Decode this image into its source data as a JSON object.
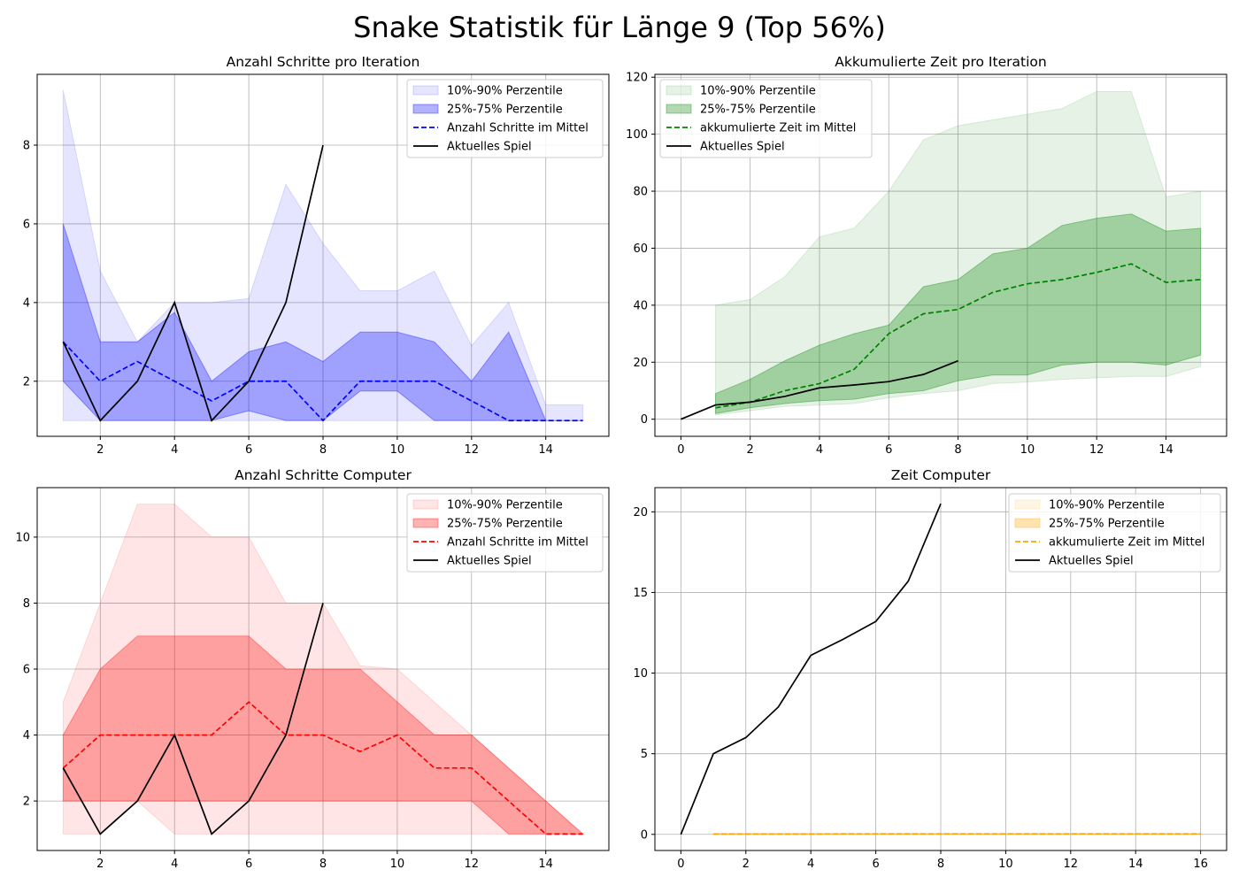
{
  "title": "Snake Statistik für Länge 9 (Top 56%)",
  "chart_data": [
    {
      "type": "line",
      "title": "Anzahl Schritte pro Iteration",
      "color": "#0000ff",
      "xlim": [
        0.3,
        15.7
      ],
      "ylim": [
        0.6,
        9.8
      ],
      "xticks": [
        2,
        4,
        6,
        8,
        10,
        12,
        14
      ],
      "yticks": [
        2,
        4,
        6,
        8
      ],
      "grid": true,
      "legend": "top-right",
      "legend_labels": {
        "band_outer": "10%-90% Perzentile",
        "band_inner": "25%-75% Perzentile",
        "mean": "Anzahl Schritte im Mittel",
        "current": "Aktuelles Spiel"
      },
      "x": [
        1,
        2,
        3,
        4,
        5,
        6,
        7,
        8,
        9,
        10,
        11,
        12,
        13,
        14,
        15
      ],
      "p10": [
        1,
        1,
        1,
        1,
        1,
        1,
        1,
        1,
        1,
        1,
        1,
        1,
        1,
        1,
        1
      ],
      "p90": [
        9.4,
        4.8,
        3.0,
        4.0,
        4.0,
        4.1,
        7.0,
        5.5,
        4.3,
        4.3,
        4.8,
        2.9,
        4.0,
        1.4,
        1.4
      ],
      "p25": [
        2,
        1,
        1,
        1,
        1,
        1.25,
        1,
        1,
        1.75,
        1.75,
        1,
        1,
        1,
        1,
        1
      ],
      "p75": [
        6,
        3,
        3,
        3.75,
        2,
        2.75,
        3,
        2.5,
        3.25,
        3.25,
        3,
        2,
        3.25,
        1,
        1
      ],
      "mean": [
        3,
        2,
        2.5,
        2,
        1.5,
        2,
        2,
        1,
        2,
        2,
        2,
        1.5,
        1,
        1,
        1
      ],
      "current_x": [
        1,
        2,
        3,
        4,
        5,
        6,
        7,
        8
      ],
      "current_y": [
        3,
        1,
        2,
        4,
        1,
        2,
        4,
        8
      ]
    },
    {
      "type": "line",
      "title": "Akkumulierte Zeit pro Iteration",
      "color": "#008000",
      "xlim": [
        -0.75,
        15.75
      ],
      "ylim": [
        -6,
        121
      ],
      "xticks": [
        0,
        2,
        4,
        6,
        8,
        10,
        12,
        14
      ],
      "yticks": [
        0,
        20,
        40,
        60,
        80,
        100,
        120
      ],
      "grid": true,
      "legend": "top-left",
      "legend_labels": {
        "band_outer": "10%-90% Perzentile",
        "band_inner": "25%-75% Perzentile",
        "mean": "akkumulierte Zeit im Mittel",
        "current": "Aktuelles Spiel"
      },
      "x": [
        1,
        2,
        3,
        4,
        5,
        6,
        7,
        8,
        9,
        10,
        11,
        12,
        13,
        14,
        15
      ],
      "p10": [
        1.5,
        3.0,
        4.5,
        5.0,
        5.5,
        7.5,
        9.0,
        10.0,
        12.5,
        13.0,
        14.0,
        14.5,
        15.0,
        15.0,
        18.5
      ],
      "p90": [
        40,
        42,
        50,
        64,
        67,
        80,
        98,
        103,
        105,
        107,
        109,
        115,
        115,
        78,
        80
      ],
      "p25": [
        2,
        4,
        5.5,
        6.5,
        7,
        9,
        10,
        13.5,
        15.5,
        15.5,
        19,
        20,
        20,
        19,
        22.5
      ],
      "p75": [
        9,
        14,
        20.5,
        26,
        30,
        33,
        46.5,
        49,
        58,
        60,
        68,
        70.5,
        72,
        66,
        67
      ],
      "mean": [
        4,
        6,
        10,
        12.5,
        17.5,
        30,
        37,
        38.5,
        44.5,
        47.5,
        49,
        51.5,
        54.5,
        48,
        49
      ],
      "current_x": [
        0,
        1,
        2,
        3,
        4,
        5,
        6,
        7,
        8
      ],
      "current_y": [
        0,
        5,
        6,
        8,
        11,
        12,
        13.2,
        15.7,
        20.5
      ]
    },
    {
      "type": "line",
      "title": "Anzahl Schritte Computer",
      "color": "#ff0000",
      "xlim": [
        0.3,
        15.7
      ],
      "ylim": [
        0.5,
        11.5
      ],
      "xticks": [
        2,
        4,
        6,
        8,
        10,
        12,
        14
      ],
      "yticks": [
        2,
        4,
        6,
        8,
        10
      ],
      "grid": true,
      "legend": "top-right",
      "legend_labels": {
        "band_outer": "10%-90% Perzentile",
        "band_inner": "25%-75% Perzentile",
        "mean": "Anzahl Schritte im Mittel",
        "current": "Aktuelles Spiel"
      },
      "x": [
        1,
        2,
        3,
        4,
        5,
        6,
        7,
        8,
        9,
        10,
        11,
        12,
        13,
        14,
        15
      ],
      "p10": [
        1,
        1,
        2,
        1,
        1,
        1,
        1,
        1,
        1,
        1,
        1,
        1,
        1,
        1,
        1
      ],
      "p90": [
        5,
        8,
        11,
        11,
        10,
        10,
        8,
        8,
        6.1,
        6,
        5,
        4,
        3,
        2,
        1
      ],
      "p25": [
        2,
        2,
        2,
        2,
        2,
        2,
        2,
        2,
        2,
        2,
        2,
        2,
        1,
        1,
        1
      ],
      "p75": [
        4,
        6,
        7,
        7,
        7,
        7,
        6,
        6,
        6,
        5,
        4,
        4,
        3,
        2,
        1
      ],
      "mean": [
        3,
        4,
        4,
        4,
        4,
        5,
        4,
        4,
        3.5,
        4,
        3,
        3,
        2,
        1,
        1
      ],
      "current_x": [
        1,
        2,
        3,
        4,
        5,
        6,
        7,
        8
      ],
      "current_y": [
        3,
        1,
        2,
        4,
        1,
        2,
        4,
        8
      ]
    },
    {
      "type": "line",
      "title": "Zeit Computer",
      "color": "#ffa500",
      "xlim": [
        -0.8,
        16.8
      ],
      "ylim": [
        -1,
        21.5
      ],
      "xticks": [
        0,
        2,
        4,
        6,
        8,
        10,
        12,
        14,
        16
      ],
      "yticks": [
        0,
        5,
        10,
        15,
        20
      ],
      "grid": true,
      "legend": "top-right",
      "legend_labels": {
        "band_outer": "10%-90% Perzentile",
        "band_inner": "25%-75% Perzentile",
        "mean": "akkumulierte Zeit im Mittel",
        "current": "Aktuelles Spiel"
      },
      "x": [
        1,
        2,
        3,
        4,
        5,
        6,
        7,
        8,
        9,
        10,
        11,
        12,
        13,
        14,
        15,
        16
      ],
      "p10": [
        0,
        0,
        0,
        0,
        0,
        0,
        0,
        0,
        0,
        0,
        0,
        0,
        0,
        0,
        0,
        0
      ],
      "p90": [
        0.06,
        0.06,
        0.06,
        0.06,
        0.06,
        0.06,
        0.06,
        0.06,
        0.06,
        0.06,
        0.06,
        0.06,
        0.06,
        0.06,
        0.06,
        0.06
      ],
      "p25": [
        0.01,
        0.01,
        0.01,
        0.01,
        0.01,
        0.01,
        0.01,
        0.01,
        0.01,
        0.01,
        0.01,
        0.01,
        0.01,
        0.01,
        0.01,
        0.01
      ],
      "p75": [
        0.04,
        0.04,
        0.04,
        0.04,
        0.04,
        0.04,
        0.04,
        0.04,
        0.04,
        0.04,
        0.04,
        0.04,
        0.04,
        0.04,
        0.04,
        0.04
      ],
      "mean": [
        0.02,
        0.02,
        0.02,
        0.02,
        0.03,
        0.03,
        0.03,
        0.03,
        0.03,
        0.03,
        0.03,
        0.03,
        0.03,
        0.03,
        0.03,
        0.03
      ],
      "current_x": [
        0,
        1,
        2,
        3,
        4,
        5,
        6,
        7,
        8
      ],
      "current_y": [
        0,
        5,
        6,
        7.9,
        11.1,
        12.1,
        13.2,
        15.7,
        20.5
      ]
    }
  ]
}
